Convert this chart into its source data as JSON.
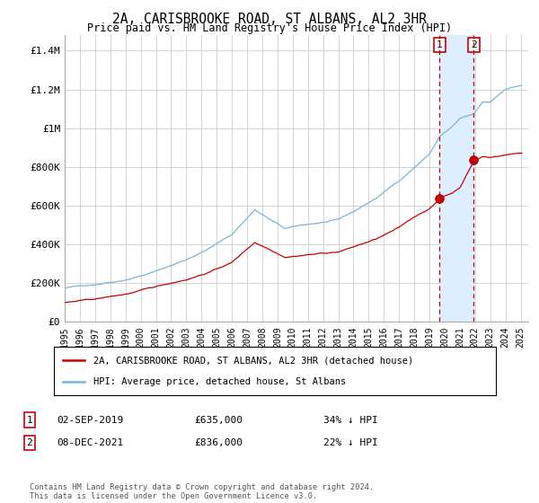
{
  "title": "2A, CARISBROOKE ROAD, ST ALBANS, AL2 3HR",
  "subtitle": "Price paid vs. HM Land Registry's House Price Index (HPI)",
  "ylabel_ticks": [
    "£0",
    "£200K",
    "£400K",
    "£600K",
    "£800K",
    "£1M",
    "£1.2M",
    "£1.4M"
  ],
  "ytick_values": [
    0,
    200000,
    400000,
    600000,
    800000,
    1000000,
    1200000,
    1400000
  ],
  "ylim": [
    0,
    1480000
  ],
  "xlim_start": 1995.0,
  "xlim_end": 2025.5,
  "hpi_color": "#7ab4d8",
  "sale_color": "#cc0000",
  "vline_color": "#cc0000",
  "shade_color": "#ddeeff",
  "marker1_x": 2019.67,
  "marker1_y": 635000,
  "marker2_x": 2021.92,
  "marker2_y": 836000,
  "annotation1": {
    "num": "1",
    "date": "02-SEP-2019",
    "price": "£635,000",
    "pct": "34% ↓ HPI"
  },
  "annotation2": {
    "num": "2",
    "date": "08-DEC-2021",
    "price": "£836,000",
    "pct": "22% ↓ HPI"
  },
  "legend_label1": "2A, CARISBROOKE ROAD, ST ALBANS, AL2 3HR (detached house)",
  "legend_label2": "HPI: Average price, detached house, St Albans",
  "footnote": "Contains HM Land Registry data © Crown copyright and database right 2024.\nThis data is licensed under the Open Government Licence v3.0.",
  "background_color": "#ffffff",
  "grid_color": "#cccccc"
}
